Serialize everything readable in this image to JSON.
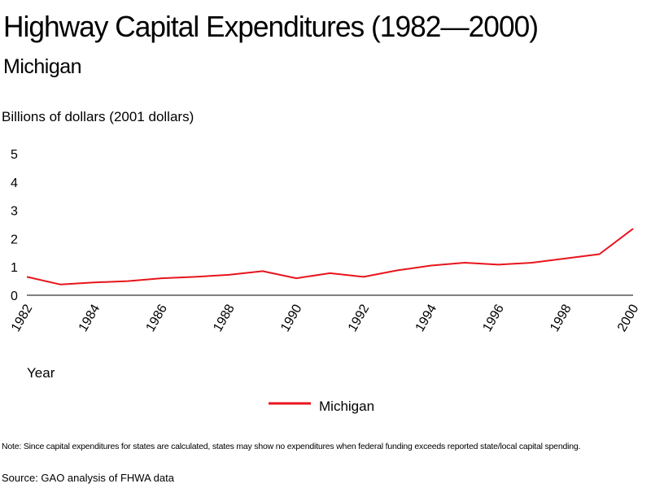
{
  "header": {
    "title": "Highway Capital Expenditures (1982—2000)",
    "subtitle": "Michigan"
  },
  "footer": {
    "note": "Note: Since capital expenditures for states are calculated, states may show no expenditures when federal funding exceeds reported state/local capital spending.",
    "source": "Source: GAO analysis of FHWA data"
  },
  "chart_data": {
    "type": "line",
    "ylabel": "Billions of dollars (2001 dollars)",
    "xlabel": "Year",
    "ylim": [
      0,
      5
    ],
    "yticks": [
      "0",
      "1",
      "2",
      "3",
      "4",
      "5"
    ],
    "xticks": [
      "1982",
      "1984",
      "1986",
      "1988",
      "1990",
      "1992",
      "1994",
      "1996",
      "1998",
      "2000"
    ],
    "grid": false,
    "legend_position": "bottom-center",
    "x": [
      1982,
      1983,
      1984,
      1985,
      1986,
      1987,
      1988,
      1989,
      1990,
      1991,
      1992,
      1993,
      1994,
      1995,
      1996,
      1997,
      1998,
      1999,
      2000
    ],
    "series": [
      {
        "name": "Michigan",
        "color": "#e8141c",
        "values": [
          0.65,
          0.38,
          0.45,
          0.5,
          0.6,
          0.65,
          0.72,
          0.85,
          0.6,
          0.78,
          0.65,
          0.88,
          1.05,
          1.15,
          1.08,
          1.15,
          1.3,
          1.45,
          2.35
        ]
      }
    ]
  }
}
